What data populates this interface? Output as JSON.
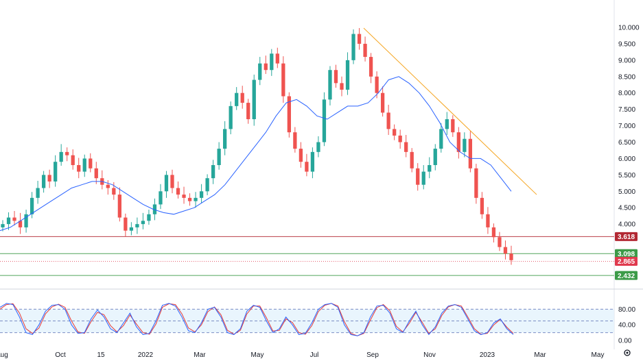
{
  "chart_data": {
    "type": "candlestick",
    "title": "",
    "price_axis": {
      "ylim": [
        3.0,
        10.0
      ],
      "ticks": [
        "10.000",
        "9.500",
        "9.000",
        "8.500",
        "8.000",
        "7.500",
        "7.000",
        "6.500",
        "6.000",
        "5.500",
        "5.000",
        "4.500",
        "4.000"
      ]
    },
    "time_axis": {
      "labels": [
        "Aug",
        "Oct",
        "15",
        "2022",
        "Mar",
        "May",
        "Jul",
        "Sep",
        "Nov",
        "2023",
        "Mar",
        "May"
      ]
    },
    "candles_close": [
      4.0,
      4.2,
      4.1,
      3.9,
      4.3,
      4.8,
      5.1,
      5.5,
      5.3,
      5.9,
      6.2,
      6.1,
      5.8,
      5.6,
      6.0,
      5.7,
      5.4,
      5.2,
      5.1,
      4.9,
      4.2,
      3.8,
      3.9,
      4.0,
      4.1,
      4.3,
      4.6,
      5.0,
      5.5,
      5.1,
      4.9,
      4.8,
      4.7,
      4.8,
      5.0,
      5.4,
      5.8,
      6.3,
      6.9,
      7.6,
      8.0,
      7.7,
      7.2,
      8.4,
      8.9,
      8.7,
      9.2,
      8.9,
      7.9,
      6.8,
      6.3,
      5.9,
      5.6,
      6.2,
      6.5,
      7.8,
      8.7,
      8.3,
      8.1,
      9.0,
      9.8,
      9.5,
      9.1,
      8.5,
      8.0,
      7.4,
      6.9,
      6.7,
      6.5,
      6.2,
      5.7,
      5.2,
      5.6,
      5.8,
      6.3,
      6.9,
      7.2,
      6.8,
      6.2,
      6.6,
      5.7,
      4.8,
      4.3,
      3.9,
      3.6,
      3.3,
      3.1,
      2.9
    ],
    "series": [
      {
        "name": "",
        "kind": "moving-average",
        "color": "#2962ff",
        "values": [
          3.8,
          3.9,
          4.1,
          4.3,
          4.5,
          4.7,
          4.9,
          5.1,
          5.2,
          5.3,
          5.3,
          5.2,
          5.0,
          4.8,
          4.6,
          4.45,
          4.35,
          4.3,
          4.4,
          4.5,
          4.7,
          4.9,
          5.2,
          5.6,
          6.0,
          6.4,
          6.8,
          7.3,
          7.7,
          7.8,
          7.6,
          7.3,
          7.2,
          7.4,
          7.6,
          7.6,
          7.7,
          8.0,
          8.4,
          8.5,
          8.3,
          8.0,
          7.6,
          7.1,
          6.5,
          6.2,
          6.0,
          6.0,
          5.8,
          5.4,
          5.0
        ]
      },
      {
        "name": "",
        "kind": "trendline",
        "color": "#f5a623",
        "values": [
          9.98,
          4.9
        ]
      }
    ],
    "levels": [
      {
        "value": 3.618,
        "label": "3.618",
        "color": "#b22833"
      },
      {
        "value": 3.098,
        "label": "3.098",
        "color": "#3c9b48"
      },
      {
        "value": 2.865,
        "label": "2.865",
        "color": "#e03a4e"
      },
      {
        "value": 2.432,
        "label": "2.432",
        "color": "#3c9b48"
      }
    ],
    "oscillator": {
      "ylim": [
        0,
        100
      ],
      "ticks": [
        "80.00",
        "40.00",
        "0.00"
      ],
      "bands": [
        20,
        50,
        80
      ],
      "k_color": "#2962ff",
      "d_color": "#e53935",
      "k": [
        85,
        95,
        92,
        60,
        20,
        15,
        40,
        75,
        90,
        92,
        80,
        40,
        18,
        20,
        55,
        78,
        60,
        30,
        20,
        45,
        70,
        35,
        15,
        18,
        50,
        90,
        95,
        88,
        60,
        25,
        20,
        45,
        80,
        85,
        60,
        20,
        15,
        30,
        75,
        90,
        85,
        50,
        20,
        30,
        60,
        40,
        15,
        18,
        45,
        80,
        92,
        95,
        85,
        40,
        15,
        12,
        20,
        60,
        88,
        90,
        70,
        30,
        20,
        50,
        75,
        40,
        15,
        35,
        70,
        88,
        92,
        85,
        55,
        25,
        15,
        20,
        45,
        55,
        30,
        15
      ],
      "d": [
        80,
        92,
        94,
        70,
        30,
        18,
        32,
        68,
        86,
        93,
        85,
        50,
        22,
        18,
        48,
        72,
        66,
        38,
        22,
        38,
        65,
        42,
        20,
        16,
        42,
        85,
        94,
        92,
        68,
        32,
        22,
        40,
        74,
        86,
        66,
        26,
        16,
        26,
        68,
        88,
        88,
        58,
        24,
        26,
        55,
        46,
        20,
        16,
        38,
        74,
        90,
        95,
        88,
        48,
        18,
        12,
        18,
        52,
        84,
        92,
        76,
        36,
        22,
        44,
        72,
        46,
        18,
        30,
        64,
        86,
        92,
        88,
        60,
        30,
        16,
        18,
        40,
        54,
        34,
        18
      ]
    }
  },
  "ui": {
    "settings_icon": "gear-icon"
  }
}
